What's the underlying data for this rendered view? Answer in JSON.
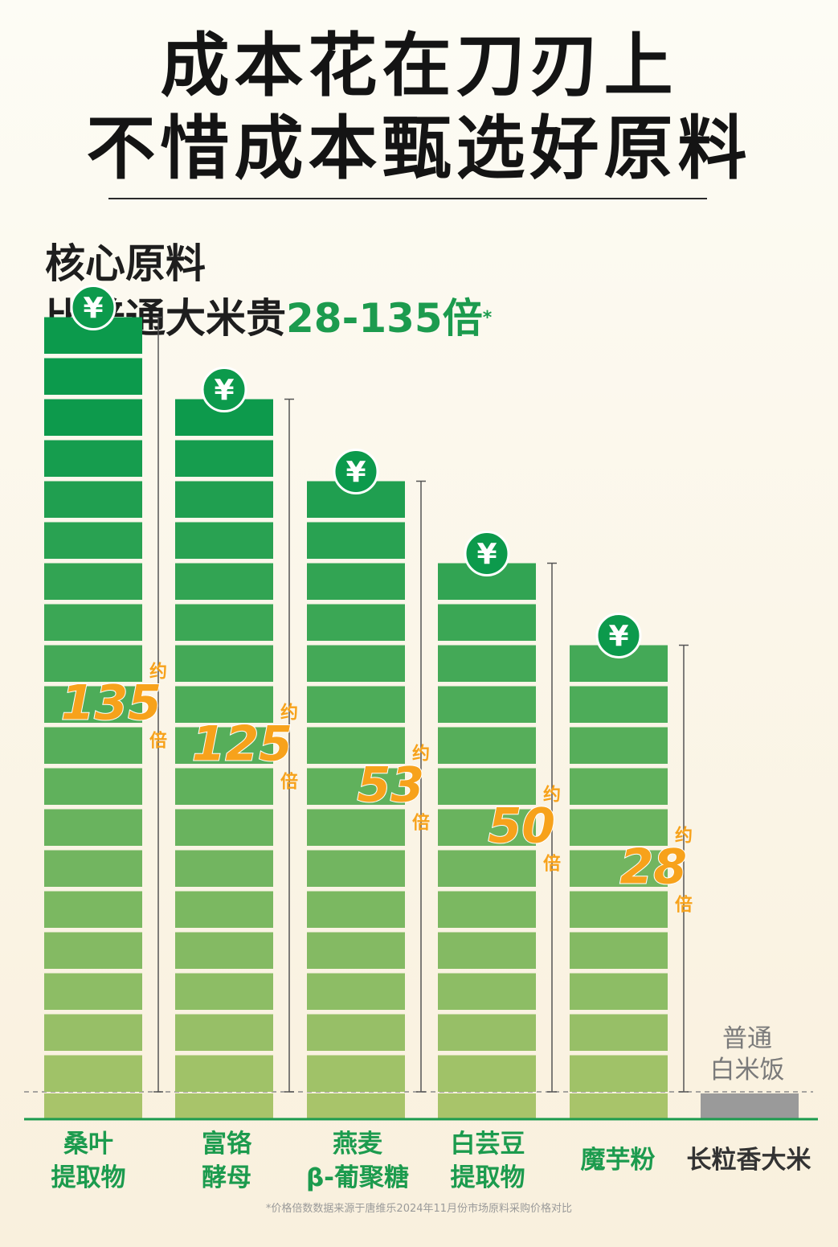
{
  "title": {
    "line1": "成本花在刀刃上",
    "line2": "不惜成本甄选好原料"
  },
  "subtitle": {
    "line1": "核心原料",
    "line2_prefix": "比普通大米贵",
    "line2_highlight": "28-135倍",
    "line2_mark": "*"
  },
  "footnote": "*价格倍数数据来源于唐维乐2024年11月份市场原料采购价格对比",
  "colors": {
    "green_dark": "#0c9a4c",
    "green_light": "#a8c46a",
    "orange": "#f7a21b",
    "gray": "#9a9a9a",
    "category_green": "#1c9b4e"
  },
  "icon": "yuan-icon",
  "chart_data": {
    "type": "bar",
    "title": "",
    "xlabel": "",
    "ylabel": "",
    "categories": [
      {
        "label1": "桑叶",
        "label2": "提取物"
      },
      {
        "label1": "富铬",
        "label2": "酵母"
      },
      {
        "label1": "燕麦",
        "label2": "β-葡聚糖"
      },
      {
        "label1": "白芸豆",
        "label2": "提取物"
      },
      {
        "label1": "魔芋粉",
        "label2": ""
      },
      {
        "label1": "长粒香大米",
        "label2": ""
      }
    ],
    "values": [
      135,
      125,
      53,
      50,
      28,
      1
    ],
    "value_labels": [
      {
        "prefix": "约",
        "number": "135",
        "suffix": "倍"
      },
      {
        "prefix": "约",
        "number": "125",
        "suffix": "倍"
      },
      {
        "prefix": "约",
        "number": "53",
        "suffix": "倍"
      },
      {
        "prefix": "约",
        "number": "50",
        "suffix": "倍"
      },
      {
        "prefix": "约",
        "number": "28",
        "suffix": "倍"
      }
    ],
    "baseline_label": {
      "line1": "普通",
      "line2": "白米饭"
    },
    "yuan_symbol": "¥"
  }
}
